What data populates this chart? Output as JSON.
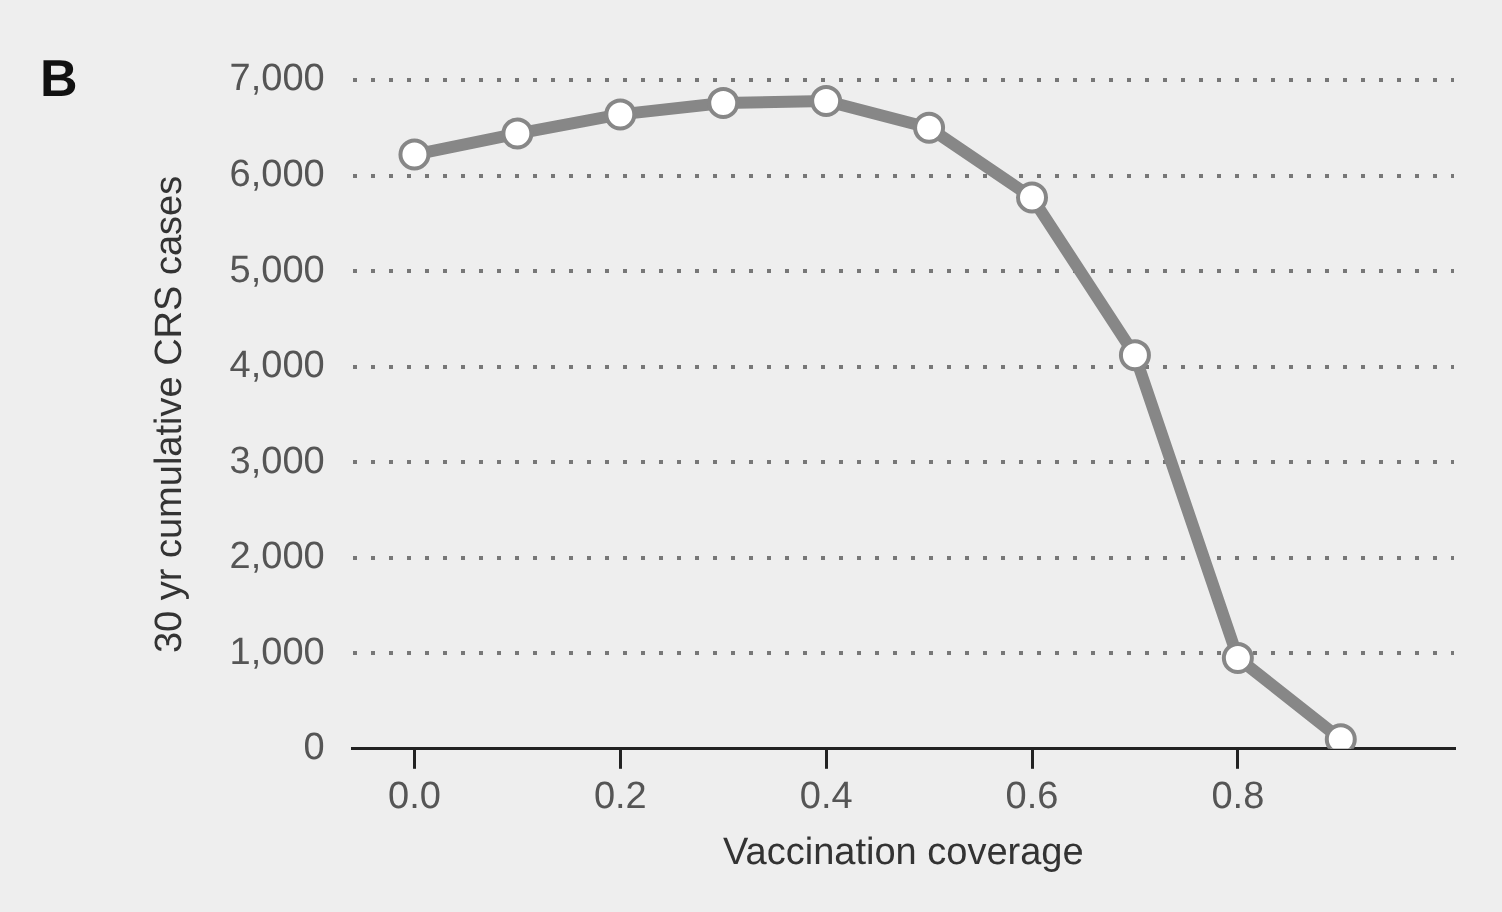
{
  "chart_data": {
    "type": "line",
    "annotations": [
      "B"
    ],
    "xlabel": "Vaccination coverage",
    "ylabel": "30 yr cumulative CRS cases",
    "x": [
      0.0,
      0.1,
      0.2,
      0.3,
      0.4,
      0.5,
      0.6,
      0.7,
      0.8,
      0.9
    ],
    "values": [
      6220,
      6440,
      6640,
      6760,
      6780,
      6500,
      5770,
      4120,
      950,
      100
    ],
    "color": "#878787",
    "xlim": [
      -0.06,
      1.01
    ],
    "xticks": [
      {
        "value": 0,
        "label": "0.0"
      },
      {
        "value": 0.2,
        "label": "0.2"
      },
      {
        "value": 0.4,
        "label": "0.4"
      },
      {
        "value": 0.6,
        "label": "0.6"
      },
      {
        "value": 0.8,
        "label": "0.8"
      }
    ],
    "ylim": [
      0,
      7000
    ],
    "yticks": [
      0,
      {
        "value": 1000,
        "label": "1,000"
      },
      {
        "value": 2000,
        "label": "2,000"
      },
      {
        "value": 3000,
        "label": "3,000"
      },
      {
        "value": 4000,
        "label": "4,000"
      },
      {
        "value": 5000,
        "label": "5,000"
      },
      {
        "value": 6000,
        "label": "6,000"
      },
      {
        "value": 7000,
        "label": "7,000"
      }
    ],
    "grid": "y",
    "marker": "circle",
    "line_style": "solid"
  }
}
